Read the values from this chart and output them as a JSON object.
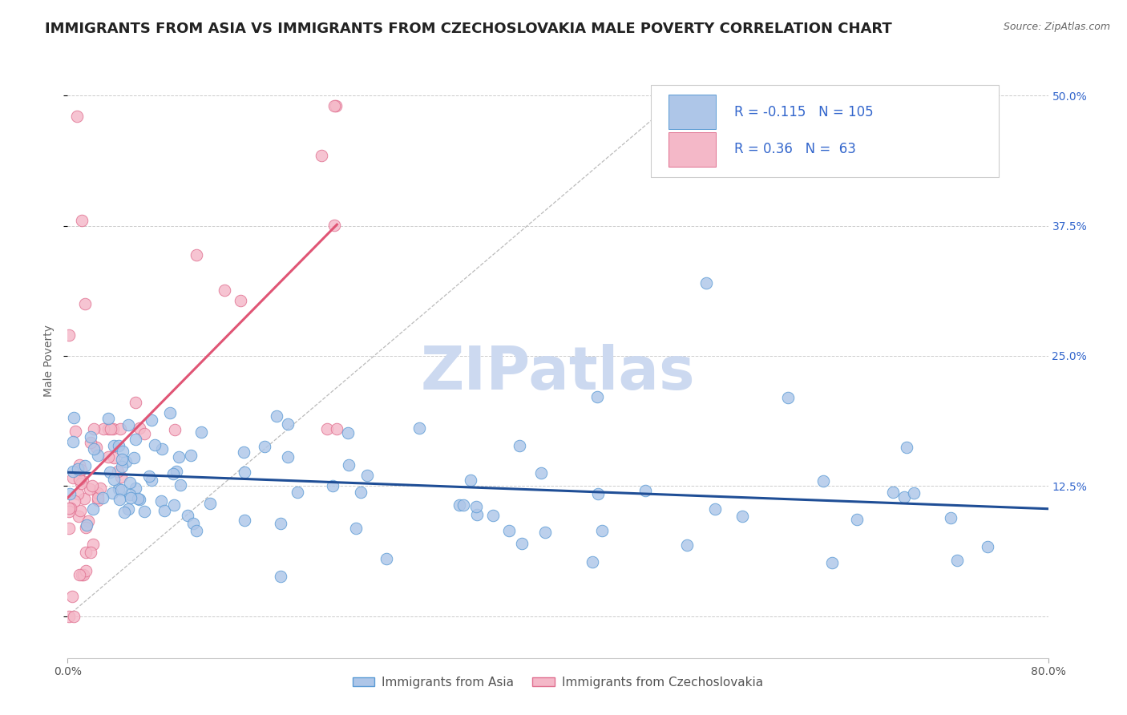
{
  "title": "IMMIGRANTS FROM ASIA VS IMMIGRANTS FROM CZECHOSLOVAKIA MALE POVERTY CORRELATION CHART",
  "source": "Source: ZipAtlas.com",
  "ylabel": "Male Poverty",
  "right_yticklabels": [
    "",
    "12.5%",
    "25.0%",
    "37.5%",
    "50.0%"
  ],
  "right_ytick_vals": [
    0.0,
    0.125,
    0.25,
    0.375,
    0.5
  ],
  "xmin": 0.0,
  "xmax": 0.8,
  "ymin": -0.04,
  "ymax": 0.53,
  "series_asia": {
    "color": "#aec6e8",
    "edge_color": "#5b9bd5",
    "R": -0.115,
    "N": 105,
    "trend_color": "#1f4e96",
    "label": "Immigrants from Asia"
  },
  "series_czech": {
    "color": "#f4b8c8",
    "edge_color": "#e07090",
    "R": 0.36,
    "N": 63,
    "trend_color": "#e05575",
    "label": "Immigrants from Czechoslovakia"
  },
  "legend_text_color": "#3366cc",
  "watermark_text": "ZIPatlas",
  "watermark_color": "#ccd9f0",
  "background_color": "#ffffff",
  "grid_color": "#cccccc",
  "title_color": "#222222",
  "title_fontsize": 13,
  "axis_label_fontsize": 10,
  "tick_fontsize": 10,
  "legend_fontsize": 12,
  "scatter_size": 110
}
